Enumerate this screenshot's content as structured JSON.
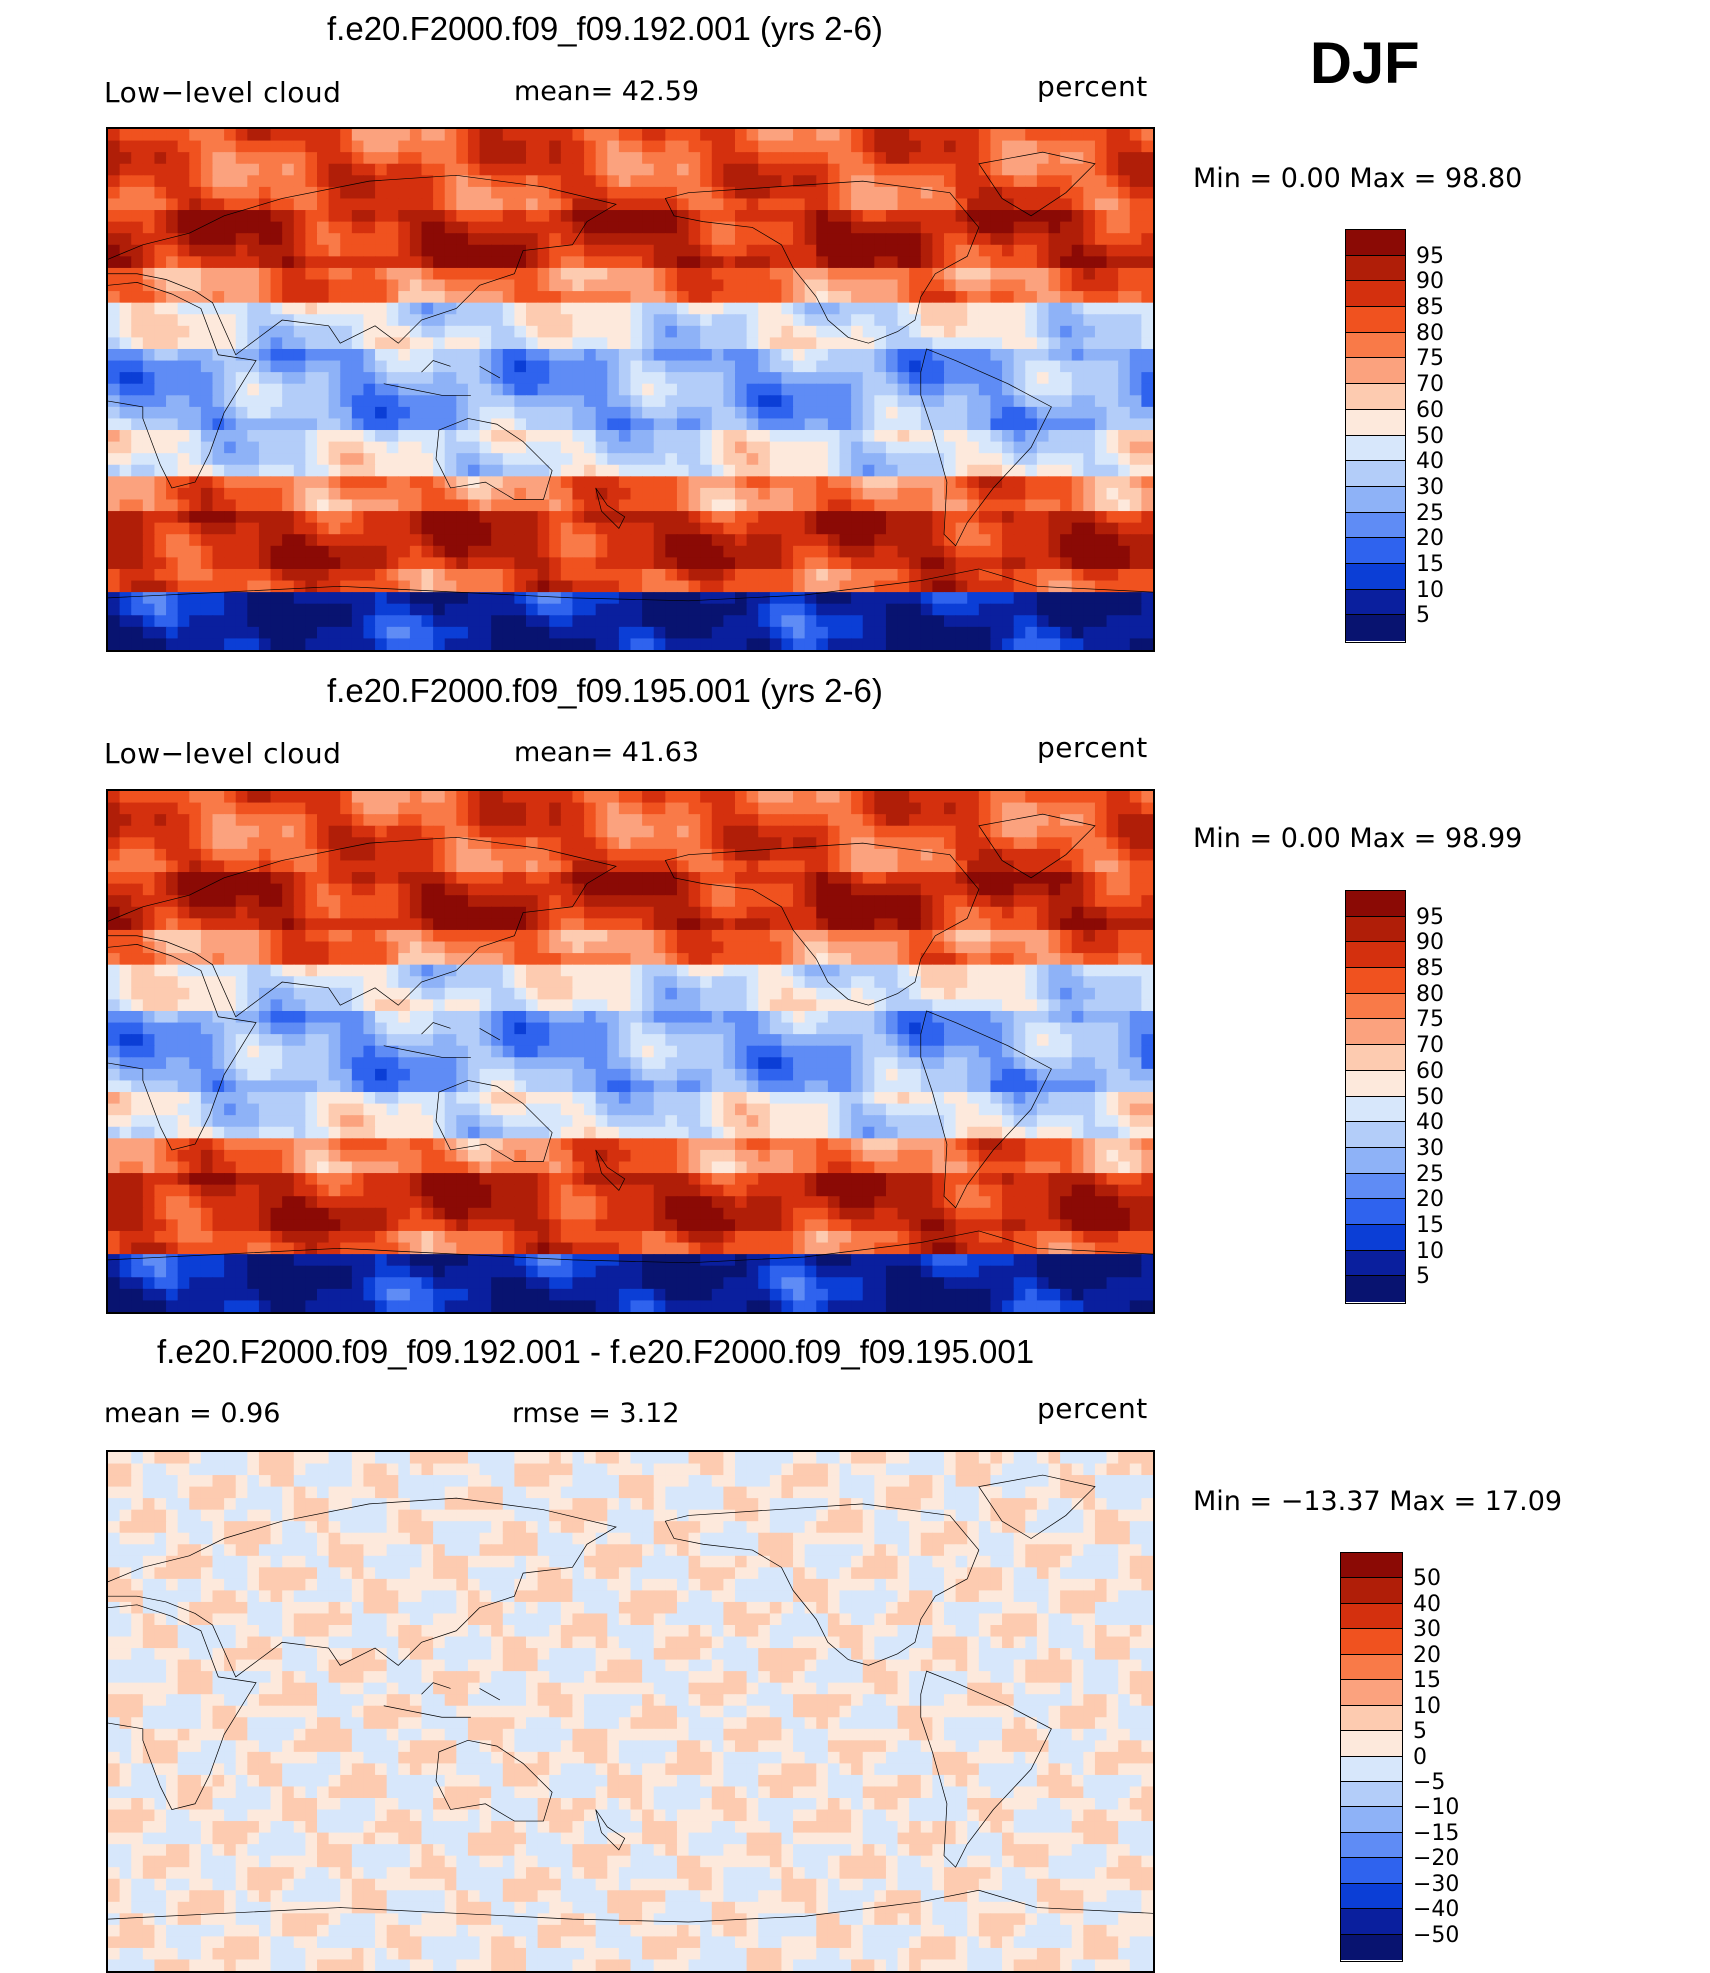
{
  "season": "DJF",
  "panels": [
    {
      "title": "f.e20.F2000.f09_f09.192.001 (yrs 2-6)",
      "left_label": "Low−level cloud",
      "mid_label": "mean=   42.59",
      "units": "percent",
      "minmax": "Min =    0.00 Max =   98.80",
      "colorbar_levels": [
        "95",
        "90",
        "85",
        "80",
        "75",
        "70",
        "60",
        "50",
        "40",
        "30",
        "25",
        "20",
        "15",
        "10",
        "5"
      ],
      "colorbar_colors": [
        "#8b0a05",
        "#b01e08",
        "#d4300e",
        "#f0521f",
        "#f97a48",
        "#fba27e",
        "#fdcbb0",
        "#fde9dc",
        "#d7e7fb",
        "#b3cdf9",
        "#8eb2f7",
        "#5f8cf5",
        "#2f63ee",
        "#0b3ed6",
        "#0a1f9e",
        "#081370"
      ],
      "style": "control"
    },
    {
      "title": "f.e20.F2000.f09_f09.195.001 (yrs 2-6)",
      "left_label": "Low−level cloud",
      "mid_label": "mean=   41.63",
      "units": "percent",
      "minmax": "Min =    0.00 Max =   98.99",
      "colorbar_levels": [
        "95",
        "90",
        "85",
        "80",
        "75",
        "70",
        "60",
        "50",
        "40",
        "30",
        "25",
        "20",
        "15",
        "10",
        "5"
      ],
      "colorbar_colors": [
        "#8b0a05",
        "#b01e08",
        "#d4300e",
        "#f0521f",
        "#f97a48",
        "#fba27e",
        "#fdcbb0",
        "#fde9dc",
        "#d7e7fb",
        "#b3cdf9",
        "#8eb2f7",
        "#5f8cf5",
        "#2f63ee",
        "#0b3ed6",
        "#0a1f9e",
        "#081370"
      ],
      "style": "control"
    },
    {
      "title": "f.e20.F2000.f09_f09.192.001 - f.e20.F2000.f09_f09.195.001",
      "left_label": "mean =    0.96",
      "mid_label": "rmse =    3.12",
      "units": "percent",
      "minmax": "Min = −13.37 Max =   17.09",
      "colorbar_levels": [
        "50",
        "40",
        "30",
        "20",
        "15",
        "10",
        "5",
        "0",
        "−5",
        "−10",
        "−15",
        "−20",
        "−30",
        "−40",
        "−50"
      ],
      "colorbar_colors": [
        "#8b0a05",
        "#b01e08",
        "#d4300e",
        "#f0521f",
        "#f97a48",
        "#fba27e",
        "#fdcbb0",
        "#fde9dc",
        "#d7e7fb",
        "#b3cdf9",
        "#8eb2f7",
        "#5f8cf5",
        "#2f63ee",
        "#0b3ed6",
        "#0a1f9e",
        "#081370"
      ],
      "style": "diff"
    }
  ]
}
